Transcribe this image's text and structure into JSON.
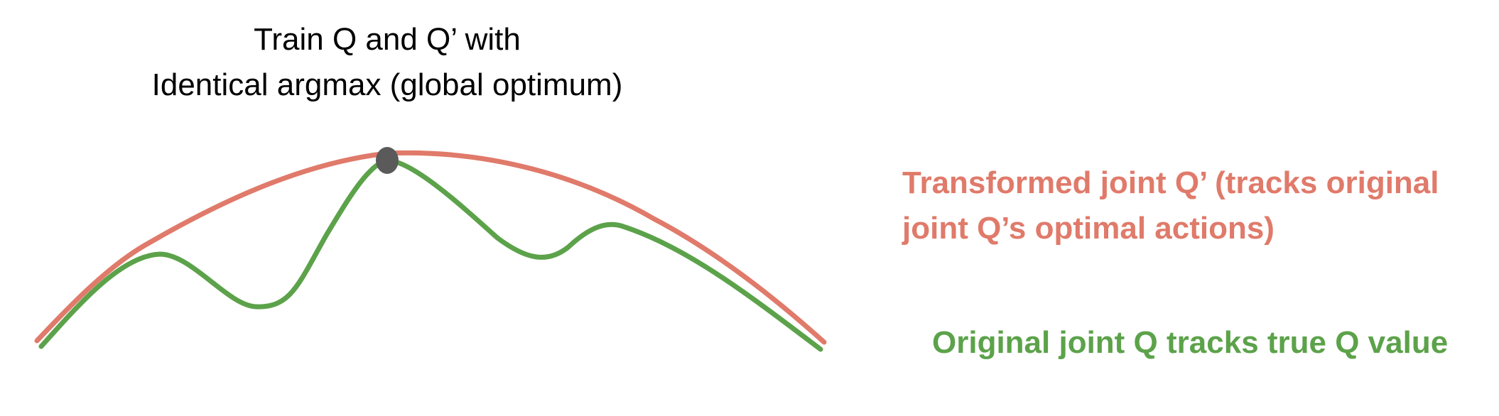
{
  "title": {
    "line1": "Train Q and Q’ with",
    "line2": "Identical argmax (global optimum)"
  },
  "labels": {
    "transformed": {
      "line1": "Transformed joint Q’ (tracks original",
      "line2": "joint Q’s optimal actions)"
    },
    "original": {
      "line1": "Original joint Q tracks true Q value"
    }
  },
  "colors": {
    "transformed": "#e07a6a",
    "original": "#5ca24a",
    "optimum_marker": "#5a5a5a",
    "title": "#000000"
  }
}
